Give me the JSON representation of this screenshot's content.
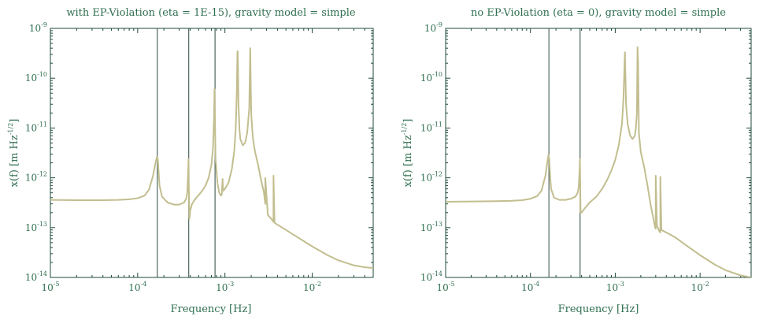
{
  "theme": {
    "text_color": "#2f6f50",
    "axis_color": "#1f4a3a",
    "line_color": "#c2be8f",
    "vline_color": "#2a4a40"
  },
  "chart_data": [
    {
      "type": "line",
      "title": "with EP-Violation (eta = 1E-15), gravity model = simple",
      "xlabel": "Frequency [Hz]",
      "ylabel": "x(f) [m Hz",
      "ylabel_exp": "-1/2",
      "ylabel_suffix": "]",
      "xscale": "log",
      "yscale": "log",
      "xlim": [
        1e-05,
        0.05
      ],
      "ylim": [
        1e-14,
        1e-09
      ],
      "grid": false,
      "xticks": [
        {
          "value": 1e-05,
          "base": "10",
          "exp": "-5"
        },
        {
          "value": 0.0001,
          "base": "10",
          "exp": "-4"
        },
        {
          "value": 0.001,
          "base": "10",
          "exp": "-3"
        },
        {
          "value": 0.01,
          "base": "10",
          "exp": "-2"
        }
      ],
      "yticks": [
        {
          "value": 1e-14,
          "base": "10",
          "exp": "-14"
        },
        {
          "value": 1e-13,
          "base": "10",
          "exp": "-13"
        },
        {
          "value": 1e-12,
          "base": "10",
          "exp": "-12"
        },
        {
          "value": 1e-11,
          "base": "10",
          "exp": "-11"
        },
        {
          "value": 1e-10,
          "base": "10",
          "exp": "-10"
        },
        {
          "value": 1e-09,
          "base": "10",
          "exp": "-9"
        }
      ],
      "vlines": [
        0.000168,
        0.000385,
        0.00077
      ],
      "series": [
        {
          "x": [
            1e-05,
            2e-05,
            4e-05,
            6e-05,
            8e-05,
            0.0001,
            0.00012,
            0.000135,
            0.00015,
            0.00016,
            0.000166,
            0.00017,
            0.000173,
            0.000178,
            0.00019,
            0.00022,
            0.00026,
            0.0003,
            0.00034,
            0.00036,
            0.00037,
            0.000378,
            0.000383,
            0.000387,
            0.000392,
            0.0004,
            0.00042,
            0.00046,
            0.0005,
            0.00055,
            0.0006,
            0.00065,
            0.0007,
            0.00073,
            0.00075,
            0.00076,
            0.00077,
            0.00078,
            0.00082,
            0.00086,
            0.0009,
            0.00092,
            0.00094,
            0.00095,
            0.00096,
            0.001,
            0.0011,
            0.0012,
            0.00128,
            0.00133,
            0.00137,
            0.00139,
            0.0014,
            0.00141,
            0.00143,
            0.00147,
            0.0015,
            0.0016,
            0.0017,
            0.0018,
            0.0019,
            0.00195,
            0.002,
            0.00205,
            0.0021,
            0.0022,
            0.0024,
            0.0026,
            0.0028,
            0.00285,
            0.0029,
            0.0029,
            0.0031,
            0.0034,
            0.0036,
            0.0036,
            0.0037,
            0.005,
            0.007,
            0.01,
            0.015,
            0.02,
            0.03,
            0.04,
            0.05
          ],
          "y": [
            3.6e-13,
            3.55e-13,
            3.55e-13,
            3.6e-13,
            3.7e-13,
            3.9e-13,
            4.4e-13,
            5.8e-13,
            1.1e-12,
            2e-12,
            2.6e-12,
            2.4e-12,
            1.5e-12,
            7e-13,
            4.2e-13,
            3.2e-13,
            2.9e-13,
            2.9e-13,
            3.2e-13,
            3.8e-13,
            5e-13,
            1.2e-12,
            2.4e-12,
            5e-13,
            1.5e-13,
            2.2e-13,
            3e-13,
            3.8e-13,
            4.5e-13,
            5.5e-13,
            7e-13,
            1e-12,
            1.8e-12,
            4e-12,
            1.5e-11,
            6e-11,
            1.3e-11,
            2.5e-12,
            8e-13,
            5e-13,
            4.4e-13,
            4.6e-13,
            9.5e-13,
            6e-13,
            5.5e-13,
            6e-13,
            8e-13,
            1.5e-12,
            3.5e-12,
            1e-11,
            6e-11,
            3.3e-10,
            3.5e-10,
            2e-10,
            3e-11,
            9e-12,
            6e-12,
            4.5e-12,
            5e-12,
            8e-12,
            2.5e-11,
            4e-10,
            2e-11,
            1e-11,
            6e-12,
            3.5e-12,
            1.8e-12,
            9e-13,
            5e-13,
            3.8e-13,
            3e-13,
            1e-12,
            1.8e-13,
            1.5e-13,
            1.3e-13,
            1.1e-12,
            1.25e-13,
            9e-14,
            6.2e-14,
            4.2e-14,
            2.8e-14,
            2.2e-14,
            1.75e-14,
            1.6e-14,
            1.55e-14
          ]
        }
      ]
    },
    {
      "type": "line",
      "title": "no EP-Violation (eta = 0), gravity model = simple",
      "xlabel": "Frequency [Hz]",
      "ylabel": "x(f) [m Hz",
      "ylabel_exp": "-1/2",
      "ylabel_suffix": "]",
      "xscale": "log",
      "yscale": "log",
      "xlim": [
        1e-05,
        0.04
      ],
      "ylim": [
        1e-14,
        1e-09
      ],
      "grid": false,
      "xticks": [
        {
          "value": 1e-05,
          "base": "10",
          "exp": "-5"
        },
        {
          "value": 0.0001,
          "base": "10",
          "exp": "-4"
        },
        {
          "value": 0.001,
          "base": "10",
          "exp": "-3"
        },
        {
          "value": 0.01,
          "base": "10",
          "exp": "-2"
        }
      ],
      "yticks": [
        {
          "value": 1e-14,
          "base": "10",
          "exp": "-14"
        },
        {
          "value": 1e-13,
          "base": "10",
          "exp": "-13"
        },
        {
          "value": 1e-12,
          "base": "10",
          "exp": "-12"
        },
        {
          "value": 1e-11,
          "base": "10",
          "exp": "-11"
        },
        {
          "value": 1e-10,
          "base": "10",
          "exp": "-10"
        },
        {
          "value": 1e-09,
          "base": "10",
          "exp": "-9"
        }
      ],
      "vlines": [
        0.000165,
        0.000385
      ],
      "series": [
        {
          "x": [
            1e-05,
            2e-05,
            4e-05,
            6e-05,
            8e-05,
            0.0001,
            0.00012,
            0.000135,
            0.00015,
            0.000158,
            0.000163,
            0.000167,
            0.00017,
            0.000175,
            0.00019,
            0.00022,
            0.00026,
            0.0003,
            0.00034,
            0.00036,
            0.00037,
            0.000378,
            0.000383,
            0.000387,
            0.00039,
            0.0004,
            0.00045,
            0.0005,
            0.0006,
            0.0007,
            0.0008,
            0.0009,
            0.001,
            0.0011,
            0.0012,
            0.00125,
            0.0013,
            0.00132,
            0.00134,
            0.0014,
            0.0015,
            0.0016,
            0.0017,
            0.00175,
            0.0018,
            0.00183,
            0.00186,
            0.0019,
            0.002,
            0.0022,
            0.0024,
            0.0026,
            0.0028,
            0.00295,
            0.003,
            0.003,
            0.0031,
            0.0033,
            0.0034,
            0.0034,
            0.0035,
            0.005,
            0.007,
            0.01,
            0.015,
            0.02,
            0.03,
            0.04
          ],
          "y": [
            3.3e-13,
            3.35e-13,
            3.4e-13,
            3.45e-13,
            3.55e-13,
            3.8e-13,
            4.3e-13,
            5.5e-13,
            1.1e-12,
            2e-12,
            2.9e-12,
            2.3e-12,
            1.2e-12,
            6e-13,
            4e-13,
            3.6e-13,
            3.6e-13,
            3.8e-13,
            4.2e-13,
            5e-13,
            6.5e-13,
            1.2e-12,
            2.4e-12,
            6e-13,
            2e-13,
            2e-13,
            2.6e-13,
            3.2e-13,
            4.2e-13,
            6e-13,
            9e-13,
            1.4e-12,
            2.3e-12,
            4.5e-12,
            1.2e-11,
            4e-11,
            3.3e-10,
            1e-10,
            3e-11,
            1.2e-11,
            7e-12,
            6e-12,
            7e-12,
            1e-11,
            2e-11,
            4.2e-10,
            2e-10,
            8e-12,
            3.3e-12,
            1.6e-12,
            7e-13,
            3e-13,
            1.6e-13,
            1e-13,
            9.5e-14,
            1.1e-12,
            1.1e-13,
            8.5e-14,
            8e-14,
            1.05e-12,
            9e-14,
            6.5e-14,
            4.3e-14,
            2.8e-14,
            1.8e-14,
            1.4e-14,
            1.1e-14,
            1e-14
          ]
        }
      ]
    }
  ]
}
